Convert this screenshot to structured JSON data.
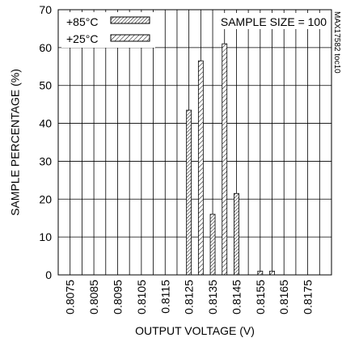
{
  "chart_data": {
    "type": "bar",
    "xlabel": "OUTPUT VOLTAGE (V)",
    "ylabel": "SAMPLE PERCENTAGE (%)",
    "ylim": [
      0,
      70
    ],
    "yticks": [
      0,
      10,
      20,
      30,
      40,
      50,
      60,
      70
    ],
    "xlim": [
      0.807,
      0.8185
    ],
    "xticks": [
      "0.8075",
      "0.8085",
      "0.8095",
      "0.8105",
      "0.8115",
      "0.8125",
      "0.8135",
      "0.8145",
      "0.8155",
      "0.8165",
      "0.8175"
    ],
    "grid": true,
    "legend_position": "top-left",
    "annotation": "SAMPLE SIZE = 100",
    "side_note": "MAX17582 toc10",
    "series": [
      {
        "name": "+85°C",
        "pattern": "dense-diagonal-hatch",
        "x": [
          0.8125,
          0.8135,
          0.8145,
          0.8155
        ],
        "values": [
          43.5,
          16,
          21.5,
          1
        ]
      },
      {
        "name": "+25°C",
        "pattern": "sparse-diagonal-hatch",
        "x": [
          0.813,
          0.814,
          0.816
        ],
        "values": [
          56.5,
          61,
          1
        ]
      }
    ]
  }
}
